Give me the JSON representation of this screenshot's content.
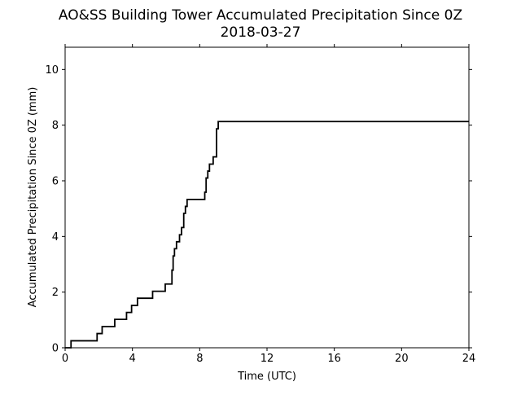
{
  "chart_data": {
    "type": "line",
    "title": "AO&SS Building Tower Accumulated Precipitation Since 0Z",
    "subtitle": "2018-03-27",
    "xlabel": "Time (UTC)",
    "ylabel": "Accumulated Precipitation Since 0Z (mm)",
    "xlim": [
      0,
      24
    ],
    "ylim": [
      0,
      10.8
    ],
    "x_ticks": [
      0,
      4,
      8,
      12,
      16,
      20,
      24
    ],
    "y_ticks": [
      0,
      2,
      4,
      6,
      8,
      10
    ],
    "grid": false,
    "legend": "none",
    "line_color": "#000000",
    "step": "post",
    "series": [
      {
        "x": [
          0,
          0.35,
          1.9,
          2.2,
          2.95,
          3.65,
          3.95,
          4.3,
          5.2,
          5.95,
          6.35,
          6.42,
          6.5,
          6.62,
          6.8,
          6.92,
          7.05,
          7.15,
          7.25,
          7.4,
          8.3,
          8.38,
          8.48,
          8.58,
          8.8,
          9.0,
          9.1,
          24
        ],
        "y": [
          0,
          0.25,
          0.51,
          0.76,
          1.02,
          1.27,
          1.52,
          1.78,
          2.03,
          2.29,
          2.79,
          3.3,
          3.56,
          3.81,
          4.06,
          4.32,
          4.83,
          5.08,
          5.33,
          5.33,
          5.59,
          6.1,
          6.35,
          6.6,
          6.86,
          7.87,
          8.13,
          8.13
        ]
      }
    ]
  }
}
